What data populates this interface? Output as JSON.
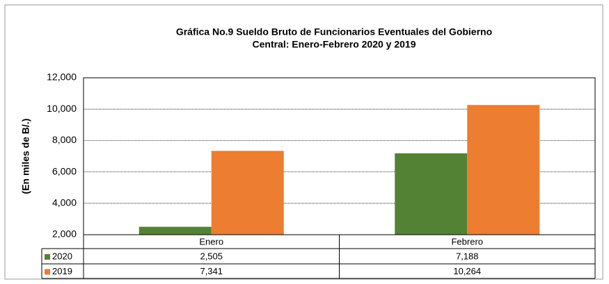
{
  "chart_data": {
    "type": "bar",
    "title": [
      "Gráfica No.9 Sueldo Bruto de Funcionarios Eventuales del  Gobierno",
      "Central: Enero-Febrero 2020 y 2019"
    ],
    "y_label": "(En miles de B/.)",
    "categories": [
      "Enero",
      "Febrero"
    ],
    "series": [
      {
        "name": "2020",
        "color": "#548235",
        "values": [
          2505,
          7188
        ],
        "value_labels": [
          "2,505",
          "7,188"
        ]
      },
      {
        "name": "2019",
        "color": "#ED7D31",
        "values": [
          7341,
          10264
        ],
        "value_labels": [
          "7,341",
          "10,264"
        ]
      }
    ],
    "ylim": [
      2000,
      12000
    ],
    "yticks": [
      {
        "value": 2000,
        "label": "2,000"
      },
      {
        "value": 4000,
        "label": "4,000"
      },
      {
        "value": 6000,
        "label": "6,000"
      },
      {
        "value": 8000,
        "label": "8,000"
      },
      {
        "value": 10000,
        "label": "10,000"
      },
      {
        "value": 12000,
        "label": "12,000"
      }
    ],
    "grid": true
  }
}
